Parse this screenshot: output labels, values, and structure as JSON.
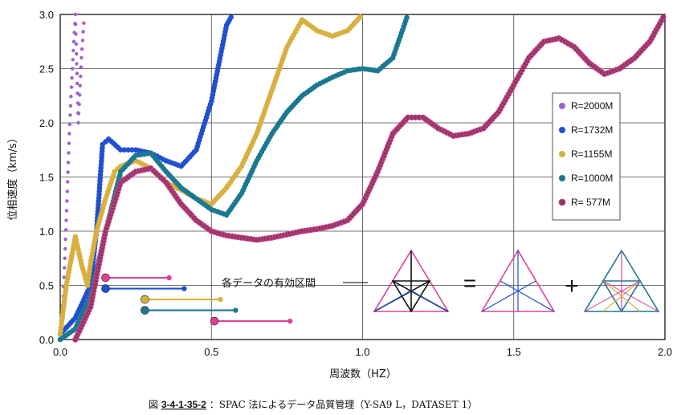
{
  "chart_data": {
    "type": "scatter",
    "xlabel": "周波数（HZ）",
    "ylabel": "位相速度（km/s）",
    "xlim": [
      0.0,
      2.0
    ],
    "ylim": [
      0.0,
      3.0
    ],
    "x_ticks": [
      "0.0",
      "0.5",
      "1.0",
      "1.5",
      "2.0"
    ],
    "y_ticks": [
      "0.0",
      "0.5",
      "1.0",
      "1.5",
      "2.0",
      "2.5",
      "3.0"
    ],
    "grid": true,
    "legend_position": "right",
    "series": [
      {
        "name": "R=2000M",
        "color": "#a060d0",
        "x": [
          0.0,
          0.01,
          0.02,
          0.03,
          0.04,
          0.05,
          0.06,
          0.07,
          0.08
        ],
        "y": [
          0.05,
          0.4,
          1.1,
          1.9,
          2.5,
          3.0,
          2.0,
          2.6,
          3.0
        ]
      },
      {
        "name": "R=1732M",
        "color": "#2050d0",
        "x": [
          0.0,
          0.05,
          0.1,
          0.12,
          0.14,
          0.16,
          0.2,
          0.25,
          0.3,
          0.35,
          0.4,
          0.45,
          0.5,
          0.55,
          0.57
        ],
        "y": [
          0.05,
          0.2,
          0.5,
          1.0,
          1.8,
          1.85,
          1.75,
          1.75,
          1.72,
          1.65,
          1.6,
          1.75,
          2.2,
          2.9,
          3.0
        ]
      },
      {
        "name": "R=1155M",
        "color": "#d8b040",
        "x": [
          0.0,
          0.02,
          0.05,
          0.07,
          0.09,
          0.1,
          0.12,
          0.15,
          0.18,
          0.2,
          0.25,
          0.3,
          0.35,
          0.4,
          0.45,
          0.5,
          0.55,
          0.6,
          0.65,
          0.7,
          0.75,
          0.8,
          0.85,
          0.9,
          0.95,
          1.0
        ],
        "y": [
          0.05,
          0.5,
          0.95,
          0.7,
          0.5,
          0.7,
          1.0,
          1.3,
          1.55,
          1.6,
          1.65,
          1.58,
          1.45,
          1.38,
          1.3,
          1.25,
          1.4,
          1.6,
          1.9,
          2.3,
          2.7,
          2.95,
          2.85,
          2.8,
          2.85,
          3.0
        ]
      },
      {
        "name": "R=1000M",
        "color": "#1a7890",
        "x": [
          0.0,
          0.05,
          0.1,
          0.15,
          0.2,
          0.25,
          0.3,
          0.35,
          0.4,
          0.45,
          0.5,
          0.55,
          0.6,
          0.65,
          0.7,
          0.75,
          0.8,
          0.85,
          0.9,
          0.95,
          1.0,
          1.05,
          1.1,
          1.15
        ],
        "y": [
          0.0,
          0.1,
          0.4,
          1.0,
          1.55,
          1.7,
          1.72,
          1.55,
          1.4,
          1.3,
          1.2,
          1.15,
          1.35,
          1.65,
          1.9,
          2.1,
          2.25,
          2.35,
          2.42,
          2.48,
          2.5,
          2.48,
          2.6,
          3.0
        ]
      },
      {
        "name": "R= 577M",
        "color": "#8a3a60",
        "x": [
          0.05,
          0.1,
          0.15,
          0.2,
          0.25,
          0.3,
          0.35,
          0.4,
          0.45,
          0.5,
          0.55,
          0.6,
          0.65,
          0.7,
          0.75,
          0.8,
          0.85,
          0.9,
          0.95,
          1.0,
          1.05,
          1.1,
          1.15,
          1.2,
          1.25,
          1.3,
          1.35,
          1.4,
          1.45,
          1.5,
          1.55,
          1.6,
          1.65,
          1.7,
          1.75,
          1.8,
          1.85,
          1.9,
          1.95,
          2.0
        ],
        "y": [
          0.0,
          0.3,
          1.0,
          1.45,
          1.55,
          1.58,
          1.45,
          1.25,
          1.1,
          1.0,
          0.96,
          0.94,
          0.92,
          0.94,
          0.97,
          1.0,
          1.02,
          1.05,
          1.1,
          1.25,
          1.55,
          1.9,
          2.05,
          2.05,
          1.95,
          1.88,
          1.9,
          1.95,
          2.1,
          2.35,
          2.6,
          2.75,
          2.78,
          2.7,
          2.55,
          2.45,
          2.5,
          2.6,
          2.75,
          3.0
        ]
      }
    ],
    "validity_ranges": {
      "label": "各データの有効区間",
      "bars": [
        {
          "series": "R=2000M",
          "color": "#e0409a",
          "x": [
            0.15,
            0.36
          ],
          "y": 0.57
        },
        {
          "series": "R=1732M",
          "color": "#2050d0",
          "x": [
            0.15,
            0.41
          ],
          "y": 0.47
        },
        {
          "series": "R=1155M",
          "color": "#d8b040",
          "x": [
            0.28,
            0.53
          ],
          "y": 0.37
        },
        {
          "series": "R=1000M",
          "color": "#1a7890",
          "x": [
            0.28,
            0.58
          ],
          "y": 0.27
        },
        {
          "series": "R= 577M",
          "color": "#e0409a",
          "x": [
            0.51,
            0.76
          ],
          "y": 0.17
        }
      ]
    }
  },
  "annotation": {
    "equals": "=",
    "plus": "+"
  },
  "caption": {
    "prefix": "図",
    "number": "3-4-1-35-2",
    "text": "：SPAC 法によるデータ品質管理（Y-SA9 L，DATASET 1）"
  }
}
